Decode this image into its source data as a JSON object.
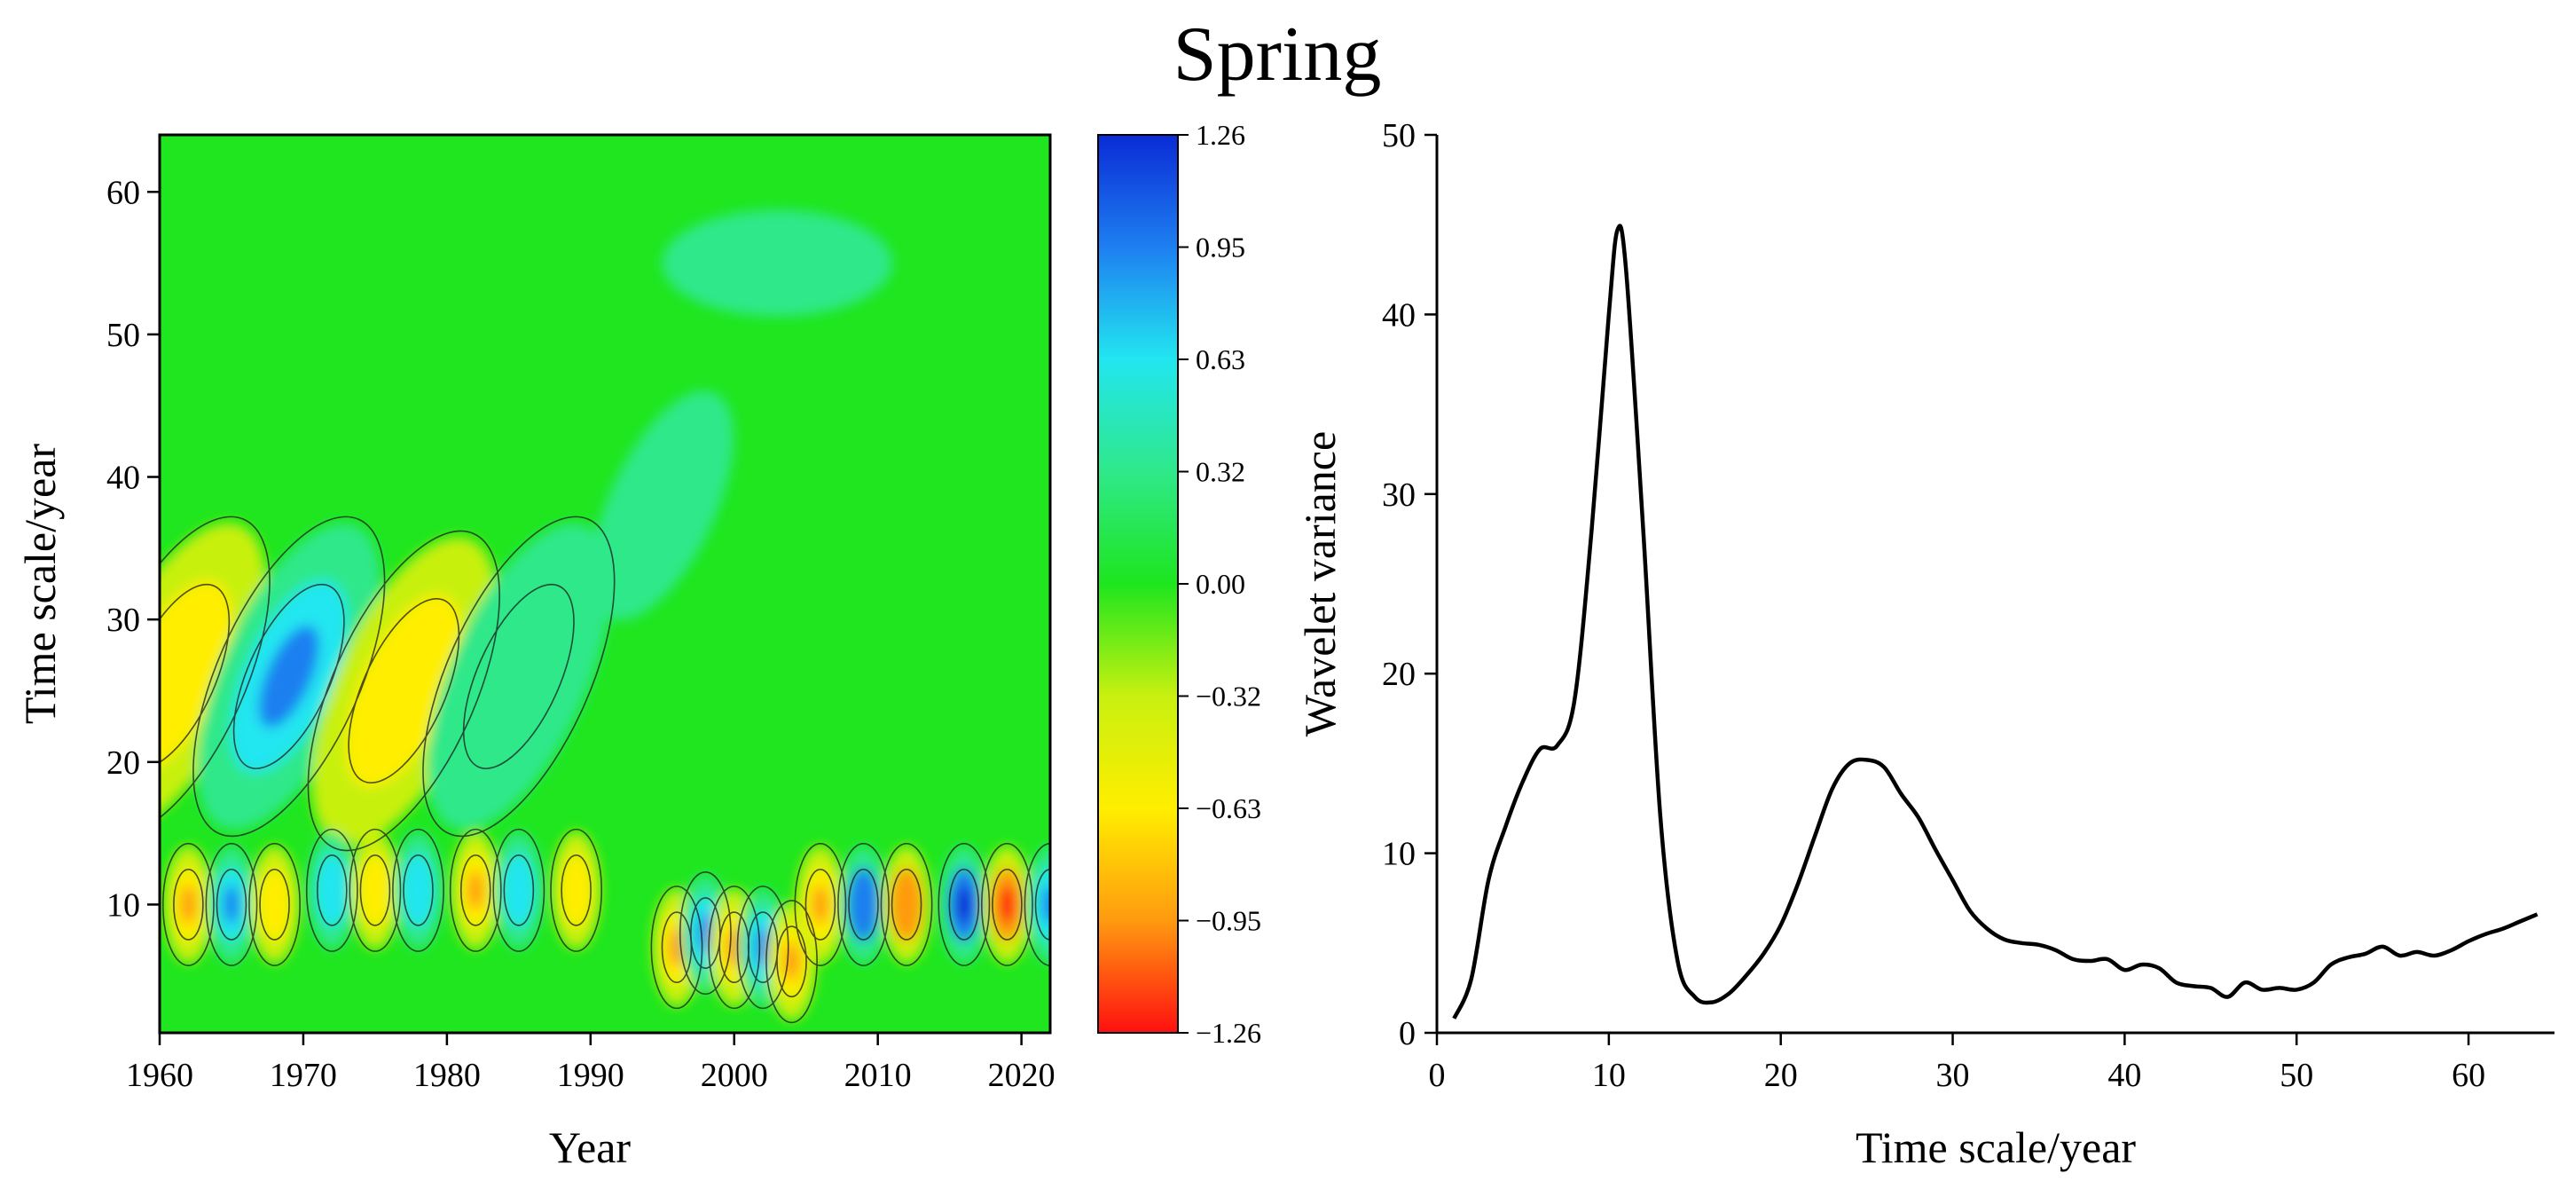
{
  "title": "Spring",
  "chart_data": [
    {
      "type": "heatmap",
      "xlabel": "Year",
      "ylabel": "Time scale/year",
      "xlim": [
        1960,
        2022
      ],
      "ylim": [
        1,
        64
      ],
      "xticks": [
        1960,
        1970,
        1980,
        1990,
        2000,
        2010,
        2020
      ],
      "yticks": [
        10,
        20,
        30,
        40,
        50,
        60
      ],
      "colorbar": {
        "ticks": [
          "1.26",
          "0.95",
          "0.63",
          "0.32",
          "0.00",
          "−0.32",
          "−0.63",
          "−0.95",
          "−1.26"
        ],
        "range": [
          -1.26,
          1.26
        ],
        "colors_high_to_low": [
          "#0a2bd6",
          "#1e7ff0",
          "#22e6f0",
          "#2fe88a",
          "#1ee61e",
          "#c8f010",
          "#ffee00",
          "#ff9a10",
          "#ff1010"
        ]
      },
      "features": [
        {
          "year": 1961,
          "scale": 26,
          "value": -0.7
        },
        {
          "year": 1969,
          "scale": 26,
          "value": 0.9
        },
        {
          "year": 1977,
          "scale": 25,
          "value": -0.7
        },
        {
          "year": 1985,
          "scale": 26,
          "value": 0.45
        },
        {
          "year": 1962,
          "scale": 10,
          "value": -0.8
        },
        {
          "year": 1965,
          "scale": 10,
          "value": 0.9
        },
        {
          "year": 1968,
          "scale": 10,
          "value": -0.7
        },
        {
          "year": 1972,
          "scale": 11,
          "value": 0.7
        },
        {
          "year": 1975,
          "scale": 11,
          "value": -0.7
        },
        {
          "year": 1978,
          "scale": 11,
          "value": 0.7
        },
        {
          "year": 1982,
          "scale": 11,
          "value": -0.8
        },
        {
          "year": 1985,
          "scale": 11,
          "value": 0.7
        },
        {
          "year": 1989,
          "scale": 11,
          "value": -0.7
        },
        {
          "year": 1996,
          "scale": 7,
          "value": -0.8
        },
        {
          "year": 1998,
          "scale": 8,
          "value": 0.8
        },
        {
          "year": 2000,
          "scale": 7,
          "value": -0.9
        },
        {
          "year": 2002,
          "scale": 7,
          "value": 0.8
        },
        {
          "year": 2004,
          "scale": 6,
          "value": -0.8
        },
        {
          "year": 2006,
          "scale": 10,
          "value": -0.9
        },
        {
          "year": 2009,
          "scale": 10,
          "value": 1.0
        },
        {
          "year": 2012,
          "scale": 10,
          "value": -1.05
        },
        {
          "year": 2016,
          "scale": 10,
          "value": 1.2
        },
        {
          "year": 2019,
          "scale": 10,
          "value": -1.2
        },
        {
          "year": 2022,
          "scale": 10,
          "value": 0.9
        }
      ]
    },
    {
      "type": "line",
      "xlabel": "Time scale/year",
      "ylabel": "Wavelet variance",
      "xlim": [
        0,
        65
      ],
      "ylim": [
        0,
        50
      ],
      "xticks": [
        0,
        10,
        20,
        30,
        40,
        50,
        60
      ],
      "yticks": [
        0,
        10,
        20,
        30,
        40,
        50
      ],
      "x": [
        1,
        2,
        3,
        4,
        5,
        6,
        7,
        8,
        9,
        10,
        10.5,
        11,
        12,
        13,
        14,
        15,
        16,
        17,
        18,
        19,
        20,
        21,
        22,
        23,
        24,
        25,
        26,
        27,
        28,
        29,
        30,
        31,
        32,
        33,
        34,
        35,
        36,
        37,
        38,
        39,
        40,
        41,
        42,
        43,
        44,
        45,
        46,
        47,
        48,
        49,
        50,
        51,
        52,
        53,
        54,
        55,
        56,
        57,
        58,
        59,
        60,
        61,
        62,
        63,
        64
      ],
      "y": [
        0.8,
        3,
        8.5,
        11.5,
        14,
        15.8,
        16,
        18.5,
        28,
        40,
        44.7,
        42.5,
        28,
        12,
        4,
        2.0,
        1.7,
        2.2,
        3.2,
        4.4,
        6,
        8.3,
        11,
        13.6,
        15,
        15.2,
        14.8,
        13.3,
        12,
        10.2,
        8.5,
        6.8,
        5.8,
        5.2,
        5.0,
        4.9,
        4.6,
        4.1,
        4.0,
        4.1,
        3.5,
        3.8,
        3.6,
        2.8,
        2.6,
        2.5,
        2.0,
        2.8,
        2.4,
        2.5,
        2.4,
        2.8,
        3.8,
        4.2,
        4.4,
        4.8,
        4.3,
        4.5,
        4.3,
        4.6,
        5.1,
        5.5,
        5.8,
        6.2,
        6.6
      ]
    }
  ]
}
